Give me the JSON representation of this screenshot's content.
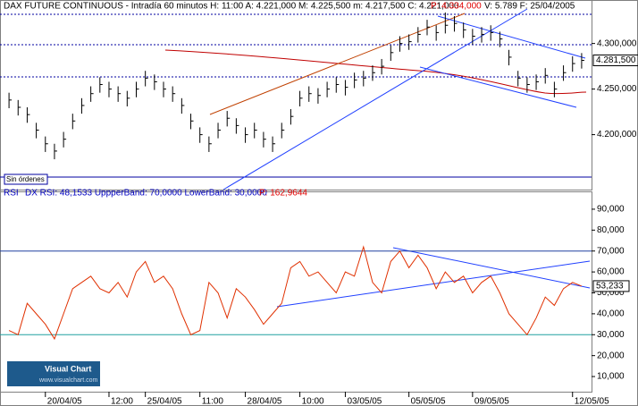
{
  "chart_data": [
    {
      "type": "ohlc",
      "header": "DAX FUTURE CONTINUOUS - Intradía 60 minutos H: 11:00 A: 4.221,000 M: 4.225,500 m: 4.217,500 C: 4.221,000",
      "header_price": "P: 4.334,000",
      "header_rest": "V: 5.789 F: 25/04/2005",
      "note": "Sin órdenes",
      "logo": "Visual Chart",
      "logo_url": "www.visualchart.com",
      "color": "#000000",
      "categories": [
        null,
        null,
        null,
        null,
        "20/04/05",
        null,
        null,
        null,
        null,
        null,
        null,
        "12:00",
        null,
        null,
        null,
        "25/04/05",
        null,
        null,
        null,
        null,
        null,
        "11:00",
        null,
        null,
        null,
        null,
        "28/04/05",
        null,
        null,
        null,
        null,
        null,
        "10:00",
        null,
        null,
        null,
        null,
        "03/05/05",
        null,
        null,
        null,
        null,
        null,
        null,
        "05/05/05",
        null,
        null,
        null,
        null,
        null,
        null,
        "09/05/05",
        null,
        null,
        null,
        null,
        null,
        null,
        null,
        null,
        null,
        null,
        "12/05/05",
        null
      ],
      "high": [
        4.246,
        4.238,
        4.23,
        4.213,
        4.198,
        4.19,
        4.203,
        4.223,
        4.24,
        4.253,
        4.263,
        4.258,
        4.253,
        4.248,
        4.258,
        4.27,
        4.266,
        4.258,
        4.253,
        4.24,
        4.223,
        4.208,
        4.198,
        4.213,
        4.226,
        4.218,
        4.208,
        4.213,
        4.203,
        4.198,
        4.213,
        4.228,
        4.248,
        4.253,
        4.251,
        4.258,
        4.263,
        4.26,
        4.268,
        4.27,
        4.276,
        4.283,
        4.298,
        4.308,
        4.31,
        4.318,
        4.326,
        4.32,
        4.334,
        4.33,
        4.323,
        4.316,
        4.318,
        4.32,
        4.313,
        4.293,
        4.27,
        4.263,
        4.266,
        4.273,
        4.258,
        4.276,
        4.286,
        4.2895
      ],
      "low": [
        4.229,
        4.221,
        4.213,
        4.196,
        4.181,
        4.173,
        4.186,
        4.206,
        4.223,
        4.236,
        4.246,
        4.241,
        4.236,
        4.231,
        4.241,
        4.253,
        4.249,
        4.241,
        4.236,
        4.223,
        4.206,
        4.191,
        4.181,
        4.196,
        4.209,
        4.201,
        4.191,
        4.196,
        4.186,
        4.181,
        4.196,
        4.211,
        4.231,
        4.236,
        4.234,
        4.241,
        4.246,
        4.243,
        4.251,
        4.253,
        4.259,
        4.266,
        4.281,
        4.291,
        4.293,
        4.301,
        4.309,
        4.303,
        4.311,
        4.313,
        4.306,
        4.299,
        4.301,
        4.303,
        4.296,
        4.276,
        4.253,
        4.246,
        4.249,
        4.256,
        4.241,
        4.259,
        4.269,
        4.2725
      ],
      "close": [
        4.238,
        4.23,
        4.222,
        4.205,
        4.19,
        4.182,
        4.195,
        4.215,
        4.232,
        4.245,
        4.255,
        4.25,
        4.245,
        4.24,
        4.25,
        4.262,
        4.258,
        4.25,
        4.245,
        4.232,
        4.215,
        4.2,
        4.19,
        4.205,
        4.218,
        4.21,
        4.2,
        4.205,
        4.195,
        4.19,
        4.205,
        4.22,
        4.24,
        4.245,
        4.243,
        4.25,
        4.255,
        4.252,
        4.26,
        4.262,
        4.268,
        4.275,
        4.29,
        4.3,
        4.302,
        4.31,
        4.318,
        4.312,
        4.32,
        4.322,
        4.315,
        4.308,
        4.31,
        4.312,
        4.305,
        4.285,
        4.262,
        4.255,
        4.258,
        4.265,
        4.25,
        4.268,
        4.278,
        4.2815
      ],
      "last_label": "4.281,500",
      "ylim": [
        4.1417,
        4.3379
      ],
      "yticks": [
        {
          "value": 4.2,
          "label": "4.200,000"
        },
        {
          "value": 4.25,
          "label": "4.250,000"
        },
        {
          "value": 4.3,
          "label": "4.300,000"
        }
      ]
    },
    {
      "type": "line",
      "header_name": "RSI",
      "header": "DX RSI: 48,1533 UppperBand: 70,0000 LowerBand: 30,0000",
      "header_price": "P: 162,9644",
      "color": "#e03000",
      "values": [
        32,
        30,
        45,
        40,
        35,
        28,
        40,
        52,
        55,
        58,
        52,
        50,
        55,
        48,
        60,
        65,
        55,
        58,
        52,
        40,
        30,
        32,
        55,
        50,
        38,
        52,
        48,
        42,
        35,
        40,
        45,
        62,
        65,
        58,
        60,
        55,
        50,
        60,
        58,
        72,
        55,
        50,
        65,
        70,
        62,
        68,
        62,
        52,
        60,
        55,
        58,
        50,
        55,
        58,
        50,
        40,
        35,
        30,
        38,
        48,
        44,
        52,
        55,
        53.233
      ],
      "last_label": "53,233",
      "bands": [
        70,
        30
      ],
      "ylim": [
        1.9,
        95.1
      ],
      "yticks": [
        {
          "value": 10,
          "label": "10,000"
        },
        {
          "value": 20,
          "label": "20,000"
        },
        {
          "value": 30,
          "label": "30,000"
        },
        {
          "value": 40,
          "label": "40,000"
        },
        {
          "value": 50,
          "label": "50,000"
        },
        {
          "value": 60,
          "label": "60,000"
        },
        {
          "value": 70,
          "label": "70,000"
        },
        {
          "value": 80,
          "label": "80,000"
        },
        {
          "value": 90,
          "label": "90,000"
        }
      ]
    }
  ]
}
